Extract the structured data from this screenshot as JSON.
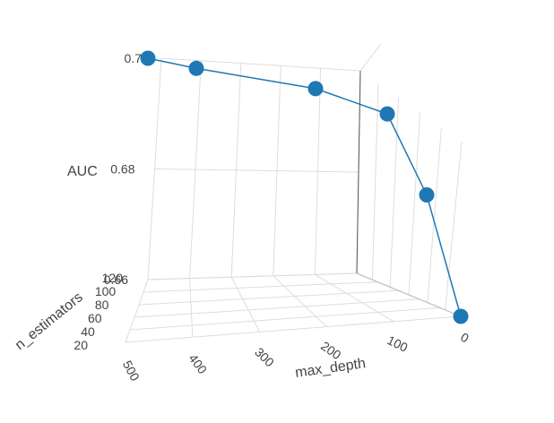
{
  "chart_data": {
    "type": "scatter3d",
    "mode": "lines+markers",
    "x": [
      500,
      450,
      300,
      200,
      100,
      0
    ],
    "y": [
      100,
      100,
      100,
      100,
      100,
      100
    ],
    "z": [
      0.7,
      0.698,
      0.694,
      0.689,
      0.673,
      0.649
    ],
    "x_label": "max_depth",
    "y_label": "n_estimators",
    "z_label": "AUC",
    "x_ticks": [
      "500",
      "400",
      "300",
      "200",
      "100",
      "0"
    ],
    "y_ticks": [
      "20",
      "40",
      "60",
      "80",
      "100",
      "120"
    ],
    "z_ticks": [
      "0.66",
      "0.68",
      "0.7"
    ],
    "x_range": [
      0,
      500
    ],
    "y_range": [
      20,
      120
    ],
    "z_range": [
      0.66,
      0.7
    ],
    "grid": true,
    "colors": {
      "series": "#1f77b4",
      "grid": "#dddddd",
      "text": "#444444"
    }
  }
}
